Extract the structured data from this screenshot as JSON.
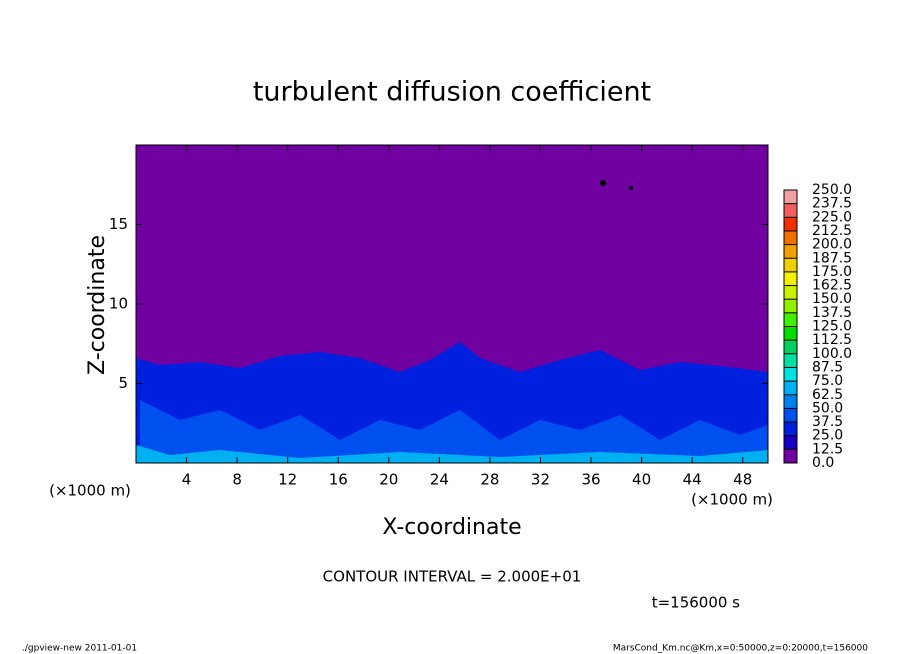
{
  "chart_data": {
    "type": "contour",
    "title": "turbulent diffusion coefficient",
    "x_label": "X-coordinate",
    "y_label": "Z-coordinate",
    "x_unit_left": "(×1000 m)",
    "x_unit_right": "(×1000 m)",
    "xlim": [
      0,
      50
    ],
    "xticks": [
      4,
      8,
      12,
      16,
      20,
      24,
      28,
      32,
      36,
      40,
      44,
      48
    ],
    "ylim": [
      0,
      20
    ],
    "yticks": [
      5,
      10,
      15
    ],
    "colorbar": {
      "levels": [
        {
          "value": 0,
          "label": "0.0"
        },
        {
          "value": 12.5,
          "label": "12.5"
        },
        {
          "value": 25,
          "label": "25.0"
        },
        {
          "value": 37.5,
          "label": "37.5"
        },
        {
          "value": 50,
          "label": "50.0"
        },
        {
          "value": 62.5,
          "label": "62.5"
        },
        {
          "value": 75,
          "label": "75.0"
        },
        {
          "value": 87.5,
          "label": "87.5"
        },
        {
          "value": 100,
          "label": "100.0"
        },
        {
          "value": 112.5,
          "label": "112.5"
        },
        {
          "value": 125,
          "label": "125.0"
        },
        {
          "value": 137.5,
          "label": "137.5"
        },
        {
          "value": 150,
          "label": "150.0"
        },
        {
          "value": 162.5,
          "label": "162.5"
        },
        {
          "value": 175,
          "label": "175.0"
        },
        {
          "value": 187.5,
          "label": "187.5"
        },
        {
          "value": 200,
          "label": "200.0"
        },
        {
          "value": 212.5,
          "label": "212.5"
        },
        {
          "value": 225,
          "label": "225.0"
        },
        {
          "value": 237.5,
          "label": "237.5"
        },
        {
          "value": 250,
          "label": "250.0"
        }
      ],
      "colors": [
        "#7000a0",
        "#1800c0",
        "#0020e0",
        "#0050f0",
        "#0080f0",
        "#00b0f0",
        "#00e0e0",
        "#00e0a0",
        "#00d060",
        "#00e000",
        "#40f000",
        "#90f000",
        "#c8f000",
        "#f0f000",
        "#f0d000",
        "#f0a000",
        "#f07000",
        "#f03000",
        "#f06060",
        "#f0a0a0"
      ]
    },
    "contour_interval": "CONTOUR INTERVAL = 2.000E+01",
    "time_label": "t=156000 s",
    "footer_left": "./gpview-new  2011-01-01",
    "footer_right": "MarsCond_Km.nc@Km,x=0:50000,z=0:20000,t=156000"
  }
}
